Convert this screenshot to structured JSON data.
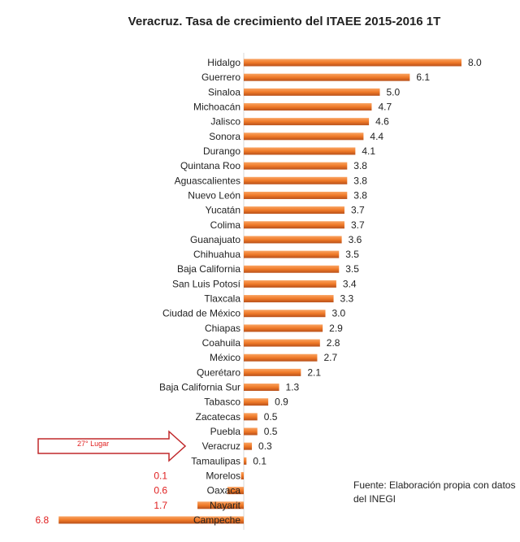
{
  "chart_data": {
    "type": "bar",
    "orientation": "horizontal",
    "title": "Veracruz. Tasa de crecimiento del ITAEE  2015-2016 1T",
    "categories": [
      "Hidalgo",
      "Guerrero",
      "Sinaloa",
      "Michoacán",
      "Jalisco",
      "Sonora",
      "Durango",
      "Quintana Roo",
      "Aguascalientes",
      "Nuevo León",
      "Yucatán",
      "Colima",
      "Guanajuato",
      "Chihuahua",
      "Baja California",
      "San Luis Potosí",
      "Tlaxcala",
      "Ciudad de México",
      "Chiapas",
      "Coahuila",
      "México",
      "Querétaro",
      "Baja California Sur",
      "Tabasco",
      "Zacatecas",
      "Puebla",
      "Veracruz",
      "Tamaulipas",
      "Morelos",
      "Oaxaca",
      "Nayarit",
      "Campeche"
    ],
    "values": [
      8.0,
      6.1,
      5.0,
      4.7,
      4.6,
      4.4,
      4.1,
      3.8,
      3.8,
      3.8,
      3.7,
      3.7,
      3.6,
      3.5,
      3.5,
      3.4,
      3.3,
      3.0,
      2.9,
      2.8,
      2.7,
      2.1,
      1.3,
      0.9,
      0.5,
      0.5,
      0.3,
      0.1,
      -0.1,
      -0.6,
      -1.7,
      -6.8
    ],
    "value_labels": [
      "8.0",
      "6.1",
      "5.0",
      "4.7",
      "4.6",
      "4.4",
      "4.1",
      "3.8",
      "3.8",
      "3.8",
      "3.7",
      "3.7",
      "3.6",
      "3.5",
      "3.5",
      "3.4",
      "3.3",
      "3.0",
      "2.9",
      "2.8",
      "2.7",
      "2.1",
      "1.3",
      "0.9",
      "0.5",
      "0.5",
      "0.3",
      "0.1",
      "0.1",
      "0.6",
      "1.7",
      "6.8"
    ],
    "annotation": "27° Lugar",
    "highlight": "Veracruz",
    "source": "Fuente: Elaboración propia con datos del INEGI",
    "colors": {
      "bar": "#f07a28",
      "bar_dark": "#b8501a",
      "negative_label": "#e02020",
      "arrow": "#c0282a"
    }
  }
}
